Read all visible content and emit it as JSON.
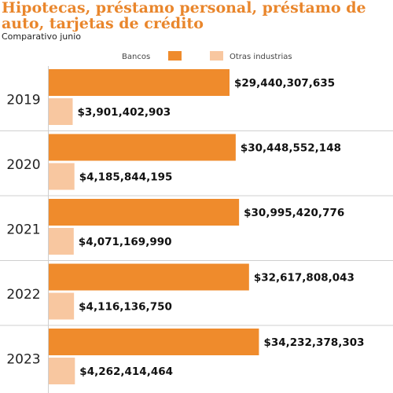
{
  "chart_data": {
    "type": "bar",
    "orientation": "horizontal",
    "title": "Hipotecas, préstamo personal, préstamo de auto, tarjetas de crédito",
    "subtitle": "Comparativo junio",
    "categories": [
      "2019",
      "2020",
      "2021",
      "2022",
      "2023"
    ],
    "series": [
      {
        "name": "Bancos",
        "color": "#ef8b2c",
        "values": [
          29440307635,
          30448552148,
          30995420776,
          32617808043,
          34232378303
        ],
        "labels": [
          "$29,440,307,635",
          "$30,448,552,148",
          "$30,995,420,776",
          "$32,617,808,043",
          "$34,232,378,303"
        ]
      },
      {
        "name": "Otras industrias",
        "color": "#f8c7a0",
        "values": [
          3901402903,
          4185844195,
          4071169990,
          4116136750,
          4262414464
        ],
        "labels": [
          "$3,901,402,903",
          "$4,185,844,195",
          "$4,071,169,990",
          "$4,116,136,750",
          "$4,262,414,464"
        ]
      }
    ],
    "legend_position": "top",
    "gridlines": "horizontal separators between years"
  }
}
